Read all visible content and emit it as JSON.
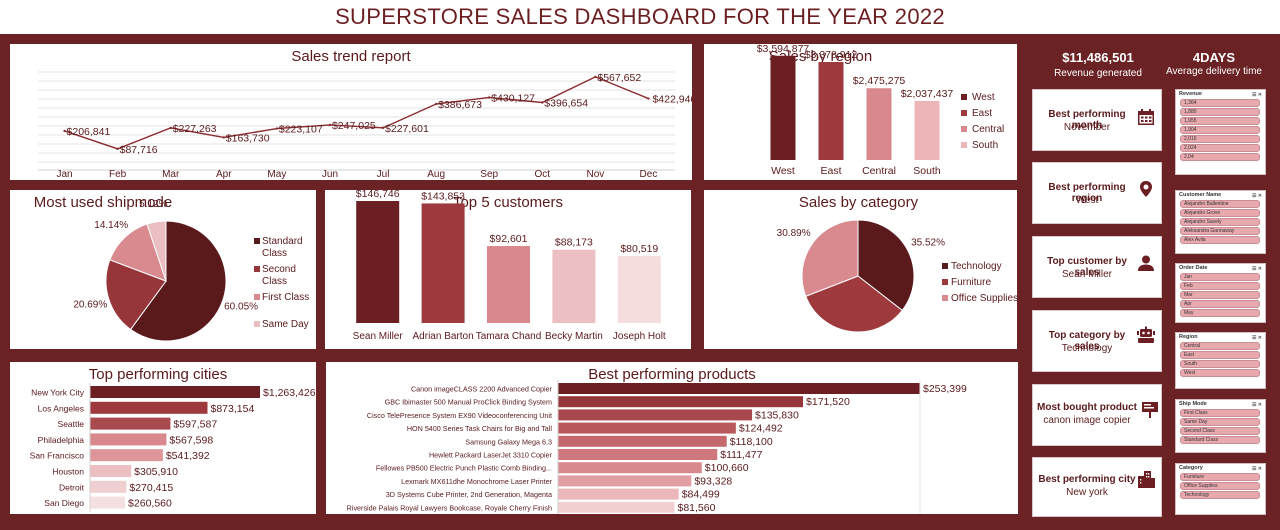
{
  "dashboard_title": "SUPERSTORE SALES DASHBOARD FOR THE YEAR 2022",
  "kpis": {
    "revenue_value": "$11,486,501",
    "revenue_label": "Revenue generated",
    "delivery_value": "4DAYS",
    "delivery_label": "Average delivery time"
  },
  "cards": [
    {
      "title": "Best performing month",
      "value": "November",
      "icon": "calendar-icon"
    },
    {
      "title": "Best performing region",
      "value": "West",
      "icon": "map-pin-icon"
    },
    {
      "title": "Top customer by sales",
      "value": "Sean Miller",
      "icon": "person-icon"
    },
    {
      "title": "Top category by sales",
      "value": "Technology",
      "icon": "robot-icon"
    },
    {
      "title": "Most bought product",
      "value": "canon image copier",
      "icon": "billboard-icon"
    },
    {
      "title": "Best performing city",
      "value": "New york",
      "icon": "buildings-icon"
    }
  ],
  "slicers": [
    {
      "title": "Revenue",
      "items": [
        "1,364",
        "1,880",
        "1,955",
        "1,904",
        "2,016",
        "2,024",
        "2,04",
        "2,48"
      ]
    },
    {
      "title": "Customer Name",
      "items": [
        "Alejandro Ballentine",
        "Alejandro Grove",
        "Alejandro Savely",
        "Aleksandra Gannaway",
        "Alex Avila"
      ]
    },
    {
      "title": "Order Date",
      "items": [
        "Jan",
        "Feb",
        "Mar",
        "Apr",
        "May"
      ]
    },
    {
      "title": "Region",
      "items": [
        "Central",
        "East",
        "South",
        "West"
      ]
    },
    {
      "title": "Ship Mode",
      "items": [
        "First Class",
        "Same Day",
        "Second Class",
        "Standard Class"
      ]
    },
    {
      "title": "Category",
      "items": [
        "Furniture",
        "Office Supplies",
        "Technology"
      ]
    }
  ],
  "chart_data": [
    {
      "id": "sales-trend",
      "type": "line",
      "title": "Sales trend report",
      "categories": [
        "Jan",
        "Feb",
        "Mar",
        "Apr",
        "May",
        "Jun",
        "Jul",
        "Aug",
        "Sep",
        "Oct",
        "Nov",
        "Dec"
      ],
      "values": [
        206841,
        87716,
        227263,
        163730,
        223107,
        247025,
        227601,
        386673,
        430127,
        396654,
        567652,
        422946
      ],
      "labels": [
        "$206,841",
        "$87,716",
        "$227,263",
        "$163,730",
        "$223,107",
        "$247,025",
        "$227,601",
        "$386,673",
        "$430,127",
        "$396,654",
        "$567,652",
        "$422,946"
      ],
      "ylim": [
        0,
        600000
      ],
      "grid": true,
      "color": "#8b2b2f"
    },
    {
      "id": "sales-by-region",
      "type": "bar",
      "title": "Sales by region",
      "categories": [
        "West",
        "East",
        "Central",
        "South"
      ],
      "values": [
        3594877,
        3378912,
        2475275,
        2037437
      ],
      "labels": [
        "$3,594,877",
        "$3,378,912",
        "$2,475,275",
        "$2,037,437"
      ],
      "colors": [
        "#6b1f22",
        "#9e3a3e",
        "#d9898e",
        "#ecb6b9"
      ],
      "legend": [
        "West",
        "East",
        "Central",
        "South"
      ],
      "legend_position": "right",
      "ylim": [
        0,
        4000000
      ]
    },
    {
      "id": "shipmode",
      "type": "pie",
      "title": "Most used shipmode",
      "slices": [
        {
          "name": "Standard Class",
          "value": 60.05,
          "label": "60.05%",
          "color": "#5a1a1c"
        },
        {
          "name": "Second Class",
          "value": 20.69,
          "label": "20.69%",
          "color": "#96353a"
        },
        {
          "name": "First Class",
          "value": 14.14,
          "label": "14.14%",
          "color": "#d98a8f"
        },
        {
          "name": "Same Day",
          "value": 5.12,
          "label": "5.12%",
          "color": "#ebbfc1"
        }
      ],
      "legend_position": "right"
    },
    {
      "id": "top-customers",
      "type": "bar",
      "title": "Top 5 customers",
      "categories": [
        "Sean Miller",
        "Adrian Barton",
        "Tamara Chand",
        "Becky Martin",
        "Joseph Holt"
      ],
      "values": [
        146746,
        143853,
        92601,
        88173,
        80519
      ],
      "labels": [
        "$146,746",
        "$143,853",
        "$92,601",
        "$88,173",
        "$80,519"
      ],
      "colors": [
        "#6b1f22",
        "#9e3a3e",
        "#d9898e",
        "#ecc0c2",
        "#f5dcdd"
      ],
      "ylim": [
        0,
        160000
      ]
    },
    {
      "id": "sales-by-category",
      "type": "pie",
      "title": "Sales by category",
      "slices": [
        {
          "name": "Technology",
          "value": 35.52,
          "label": "35.52%",
          "color": "#5a1a1c"
        },
        {
          "name": "Furniture",
          "value": 33.59,
          "label": "33.59%",
          "color": "#9e3a3e"
        },
        {
          "name": "Office Supplies",
          "value": 30.89,
          "label": "30.89%",
          "color": "#d98a8f"
        }
      ],
      "legend_position": "right"
    },
    {
      "id": "top-cities",
      "type": "bar",
      "orientation": "horizontal",
      "title": "Top performing cities",
      "categories": [
        "New York City",
        "Los Angeles",
        "Seattle",
        "Philadelphia",
        "San Francisco",
        "Houston",
        "Detroit",
        "San Diego"
      ],
      "values": [
        1263426,
        873154,
        597587,
        567598,
        541392,
        305910,
        270415,
        260560
      ],
      "labels": [
        "$1,263,426",
        "$873,154",
        "$597,587",
        "$567,598",
        "$541,392",
        "$305,910",
        "$270,415",
        "$260,560"
      ],
      "colors": [
        "#6b1f22",
        "#9e3a3e",
        "#a94a4e",
        "#d9898e",
        "#de959a",
        "#ecc0c2",
        "#f0cfd1",
        "#f5e0e1"
      ]
    },
    {
      "id": "best-products",
      "type": "bar",
      "orientation": "horizontal",
      "title": "Best performing products",
      "categories": [
        "Canon imageCLASS 2200 Advanced Copier",
        "GBC Ibimaster 500 Manual ProClick Binding System",
        "Cisco TelePresence System EX90 Videoconferencing Unit",
        "HON 5400 Series Task Chairs for Big and Tall",
        "Samsung Galaxy Mega 6.3",
        "Hewlett Packard LaserJet 3310 Copier",
        "Fellowes PB500 Electric Punch Plastic Comb Binding...",
        "Lexmark MX611dhe Monochrome Laser Printer",
        "3D Systems Cube Printer, 2nd Generation, Magenta",
        "Riverside Palais Royal Lawyers Bookcase, Royale Cherry Finish"
      ],
      "values": [
        253399,
        171520,
        135830,
        124492,
        118100,
        111477,
        100660,
        93328,
        84499,
        81560
      ],
      "labels": [
        "$253,399",
        "$171,520",
        "$135,830",
        "$124,492",
        "$118,100",
        "$111,477",
        "$100,660",
        "$93,328",
        "$84,499",
        "$81,560"
      ],
      "colors": [
        "#6b1f22",
        "#96353a",
        "#a8484c",
        "#b8585d",
        "#c4686d",
        "#ce777c",
        "#d8898e",
        "#e29fa3",
        "#ebb7ba",
        "#f2cfd1"
      ]
    }
  ]
}
